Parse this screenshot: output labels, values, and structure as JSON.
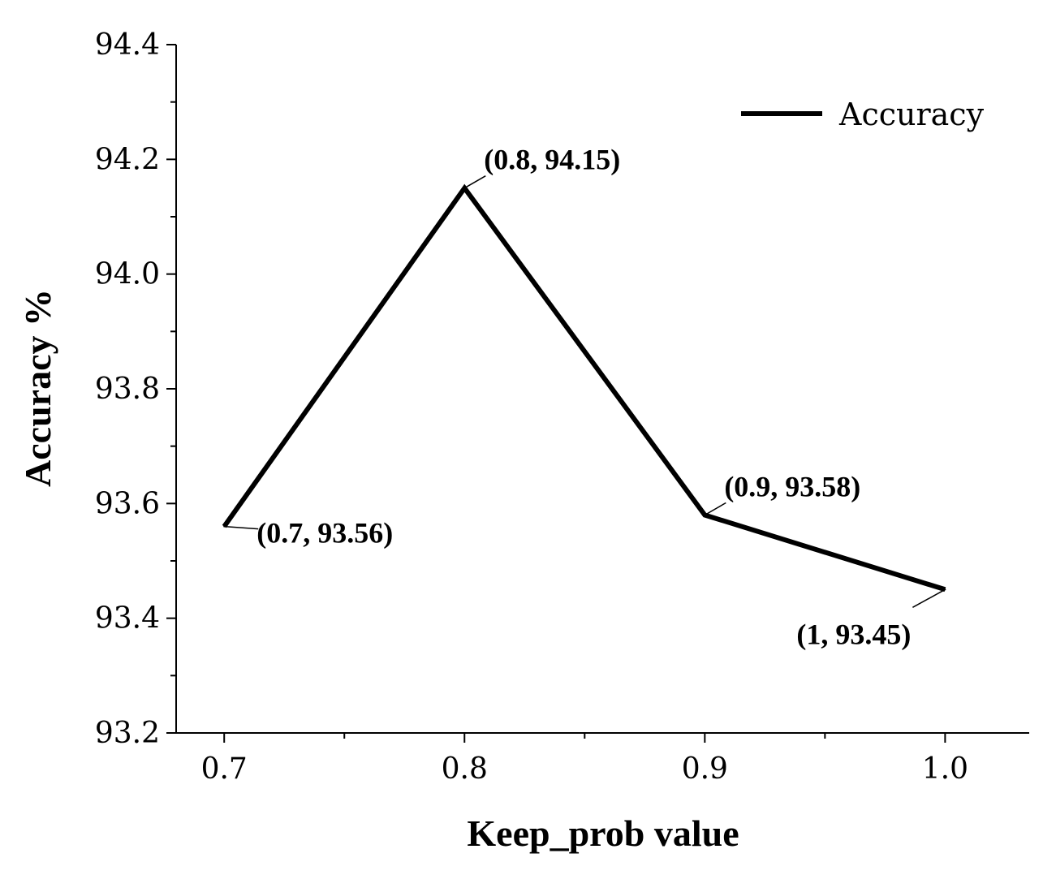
{
  "chart_data": {
    "type": "line",
    "title": "",
    "xlabel": "Keep_prob value",
    "ylabel": "Accuracy %",
    "x": [
      0.7,
      0.8,
      0.9,
      1.0
    ],
    "series": [
      {
        "name": "Accuracy",
        "color": "#000000",
        "values": [
          93.56,
          94.15,
          93.58,
          93.45
        ]
      }
    ],
    "xlim": [
      0.68,
      1.035
    ],
    "ylim": [
      93.2,
      94.4
    ],
    "xticks": [
      0.7,
      0.8,
      0.9,
      1.0
    ],
    "xtick_labels": [
      "0.7",
      "0.8",
      "0.9",
      "1.0"
    ],
    "yticks": [
      93.2,
      93.4,
      93.6,
      93.8,
      94.0,
      94.2,
      94.4
    ],
    "ytick_labels": [
      "93.2",
      "93.4",
      "93.6",
      "93.8",
      "94.0",
      "94.2",
      "94.4"
    ],
    "annotations": [
      {
        "text": "(0.7, 93.56)",
        "x": 0.7,
        "y": 93.56,
        "placement": "right"
      },
      {
        "text": "(0.8, 94.15)",
        "x": 0.8,
        "y": 94.15,
        "placement": "upper-right"
      },
      {
        "text": "(0.9, 93.58)",
        "x": 0.9,
        "y": 93.58,
        "placement": "upper-right"
      },
      {
        "text": "(1, 93.45)",
        "x": 1.0,
        "y": 93.45,
        "placement": "lower-left"
      }
    ],
    "legend": {
      "position": "top-right"
    },
    "grid": false
  }
}
